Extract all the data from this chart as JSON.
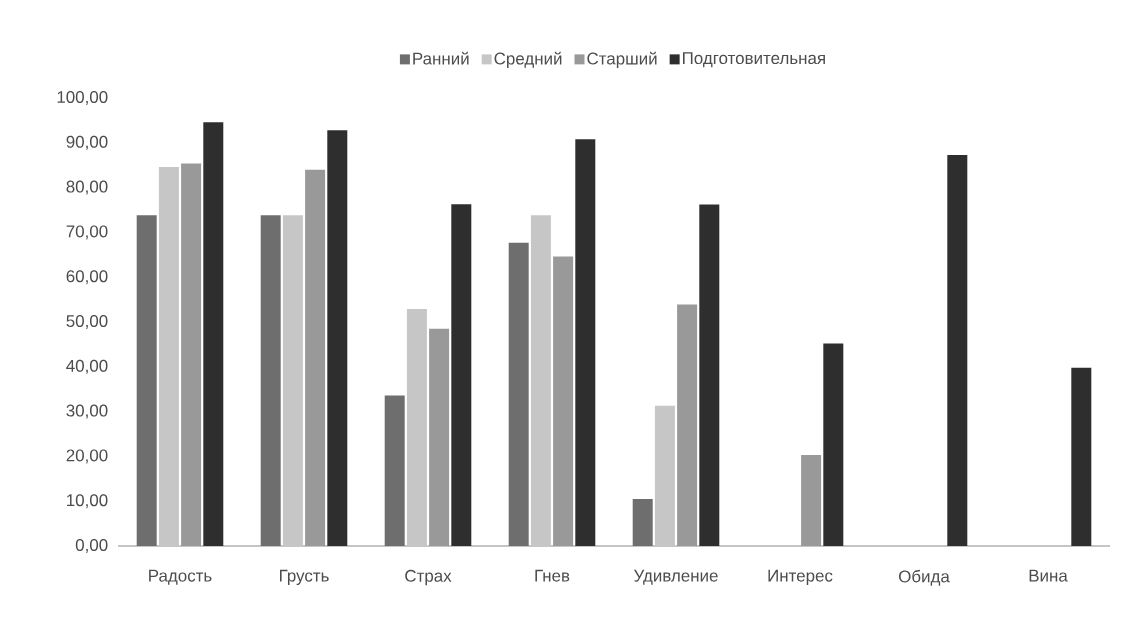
{
  "chart_data": {
    "type": "bar",
    "categories": [
      "Радость",
      "Грусть",
      "Страх",
      "Гнев",
      "Удивление",
      "Интерес",
      "Обида",
      "Вина"
    ],
    "series": [
      {
        "name": "Ранний",
        "color": "#6e6e6e",
        "values": [
          73.8,
          73.8,
          33.6,
          67.7,
          10.5,
          null,
          null,
          null
        ]
      },
      {
        "name": "Средний",
        "color": "#c6c6c6",
        "values": [
          84.6,
          73.8,
          52.9,
          73.8,
          31.3,
          null,
          null,
          null
        ]
      },
      {
        "name": "Старший",
        "color": "#999999",
        "values": [
          85.4,
          84.0,
          48.5,
          64.6,
          53.9,
          20.3,
          null,
          null
        ]
      },
      {
        "name": "Подготовительная",
        "color": "#2e2e2e",
        "values": [
          94.6,
          92.8,
          76.3,
          90.8,
          76.2,
          45.2,
          87.3,
          39.8
        ]
      }
    ],
    "ylim": [
      0,
      100
    ],
    "yticks": [
      {
        "value": 0,
        "label": "0,00"
      },
      {
        "value": 10,
        "label": "10,00"
      },
      {
        "value": 20,
        "label": "20,00"
      },
      {
        "value": 30,
        "label": "30,00"
      },
      {
        "value": 40,
        "label": "40,00"
      },
      {
        "value": 50,
        "label": "50,00"
      },
      {
        "value": 60,
        "label": "60,00"
      },
      {
        "value": 70,
        "label": "70,00"
      },
      {
        "value": 80,
        "label": "80,00"
      },
      {
        "value": 90,
        "label": "90,00"
      },
      {
        "value": 100,
        "label": "100,00"
      }
    ],
    "legend": "top"
  }
}
